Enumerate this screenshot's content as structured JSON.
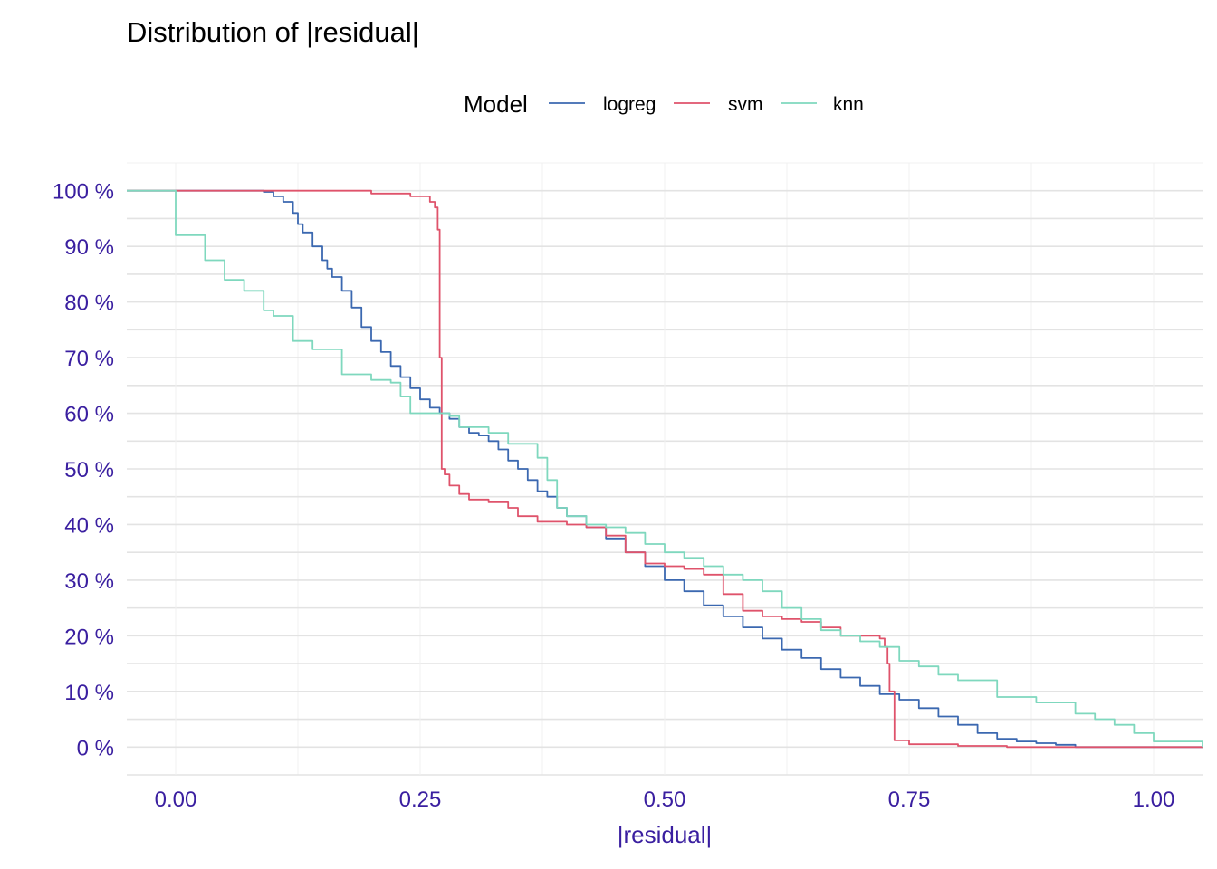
{
  "chart_data": {
    "type": "line",
    "step": true,
    "title": "Distribution of |residual|",
    "xlabel": "|residual|",
    "ylabel": "",
    "xlim": [
      -0.05,
      1.05
    ],
    "ylim": [
      -0.05,
      1.05
    ],
    "x_ticks": [
      0,
      0.25,
      0.5,
      0.75,
      1.0
    ],
    "x_tick_labels": [
      "0.00",
      "0.25",
      "0.50",
      "0.75",
      "1.00"
    ],
    "y_ticks": [
      0,
      0.1,
      0.2,
      0.3,
      0.4,
      0.5,
      0.6,
      0.7,
      0.8,
      0.9,
      1.0
    ],
    "y_tick_labels": [
      "0 %",
      "10 %",
      "20 %",
      "30 %",
      "40 %",
      "50 %",
      "60 %",
      "70 %",
      "80 %",
      "90 %",
      "100 %"
    ],
    "grid": true,
    "legend": {
      "title": "Model",
      "position": "top"
    },
    "series": [
      {
        "name": "logreg",
        "color": "#3b68b0",
        "x": [
          -0.05,
          0.0,
          0.05,
          0.09,
          0.1,
          0.11,
          0.12,
          0.125,
          0.13,
          0.14,
          0.15,
          0.155,
          0.16,
          0.17,
          0.18,
          0.19,
          0.2,
          0.21,
          0.22,
          0.23,
          0.24,
          0.25,
          0.26,
          0.27,
          0.28,
          0.29,
          0.3,
          0.31,
          0.32,
          0.33,
          0.34,
          0.35,
          0.36,
          0.37,
          0.38,
          0.39,
          0.4,
          0.42,
          0.44,
          0.46,
          0.48,
          0.5,
          0.52,
          0.54,
          0.56,
          0.58,
          0.6,
          0.62,
          0.64,
          0.66,
          0.68,
          0.7,
          0.72,
          0.74,
          0.76,
          0.78,
          0.8,
          0.82,
          0.84,
          0.86,
          0.88,
          0.9,
          0.92,
          0.95,
          1.0,
          1.05
        ],
        "y": [
          1.0,
          1.0,
          1.0,
          0.998,
          0.99,
          0.98,
          0.96,
          0.94,
          0.925,
          0.9,
          0.875,
          0.86,
          0.845,
          0.82,
          0.79,
          0.755,
          0.73,
          0.71,
          0.685,
          0.665,
          0.645,
          0.625,
          0.61,
          0.6,
          0.59,
          0.575,
          0.565,
          0.56,
          0.55,
          0.535,
          0.515,
          0.5,
          0.48,
          0.46,
          0.45,
          0.43,
          0.415,
          0.395,
          0.375,
          0.35,
          0.325,
          0.3,
          0.28,
          0.255,
          0.235,
          0.215,
          0.195,
          0.175,
          0.16,
          0.14,
          0.125,
          0.11,
          0.095,
          0.085,
          0.07,
          0.055,
          0.04,
          0.025,
          0.015,
          0.01,
          0.007,
          0.004,
          0.0,
          0.0,
          0.0,
          0.0
        ]
      },
      {
        "name": "svm",
        "color": "#df536b",
        "x": [
          -0.05,
          0.0,
          0.15,
          0.2,
          0.24,
          0.26,
          0.265,
          0.268,
          0.27,
          0.272,
          0.275,
          0.28,
          0.29,
          0.3,
          0.32,
          0.34,
          0.35,
          0.37,
          0.4,
          0.42,
          0.44,
          0.46,
          0.48,
          0.5,
          0.52,
          0.54,
          0.56,
          0.58,
          0.6,
          0.62,
          0.64,
          0.66,
          0.68,
          0.7,
          0.72,
          0.725,
          0.728,
          0.73,
          0.735,
          0.75,
          0.8,
          0.85,
          1.0,
          1.05
        ],
        "y": [
          1.0,
          1.0,
          1.0,
          0.995,
          0.99,
          0.98,
          0.97,
          0.93,
          0.7,
          0.5,
          0.49,
          0.47,
          0.455,
          0.445,
          0.44,
          0.43,
          0.415,
          0.405,
          0.4,
          0.395,
          0.38,
          0.35,
          0.33,
          0.325,
          0.32,
          0.31,
          0.275,
          0.245,
          0.235,
          0.23,
          0.225,
          0.215,
          0.2,
          0.2,
          0.195,
          0.18,
          0.15,
          0.1,
          0.012,
          0.005,
          0.002,
          0.0,
          0.0,
          0.0
        ]
      },
      {
        "name": "knn",
        "color": "#7fd8be",
        "x": [
          -0.05,
          0.0,
          0.0,
          0.01,
          0.03,
          0.04,
          0.05,
          0.07,
          0.09,
          0.1,
          0.11,
          0.12,
          0.14,
          0.16,
          0.17,
          0.2,
          0.22,
          0.23,
          0.24,
          0.28,
          0.29,
          0.32,
          0.34,
          0.37,
          0.38,
          0.39,
          0.4,
          0.42,
          0.44,
          0.46,
          0.48,
          0.5,
          0.52,
          0.54,
          0.56,
          0.58,
          0.6,
          0.62,
          0.64,
          0.66,
          0.68,
          0.7,
          0.72,
          0.74,
          0.76,
          0.78,
          0.8,
          0.84,
          0.88,
          0.92,
          0.94,
          0.96,
          0.98,
          1.0,
          1.05
        ],
        "y": [
          1.0,
          1.0,
          0.92,
          0.92,
          0.875,
          0.875,
          0.84,
          0.82,
          0.785,
          0.775,
          0.775,
          0.73,
          0.715,
          0.715,
          0.67,
          0.66,
          0.655,
          0.63,
          0.6,
          0.595,
          0.575,
          0.565,
          0.545,
          0.52,
          0.48,
          0.43,
          0.415,
          0.4,
          0.395,
          0.385,
          0.365,
          0.35,
          0.34,
          0.325,
          0.31,
          0.3,
          0.28,
          0.25,
          0.23,
          0.21,
          0.2,
          0.19,
          0.18,
          0.155,
          0.145,
          0.13,
          0.12,
          0.09,
          0.08,
          0.06,
          0.05,
          0.04,
          0.025,
          0.01,
          0.0
        ]
      }
    ]
  }
}
